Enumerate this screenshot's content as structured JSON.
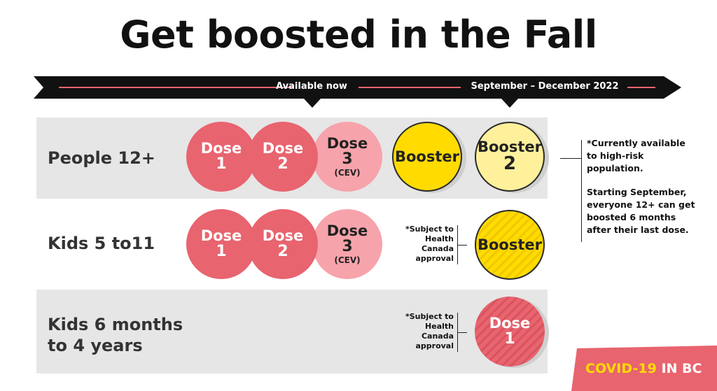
{
  "title": "Get boosted in the Fall",
  "timeline": {
    "label_available_now": "Available now",
    "label_sep_dec": "September – December 2022",
    "colors": {
      "bar": "#111111",
      "accent_line": "#e8646f"
    }
  },
  "rows": [
    {
      "label": "People 12+",
      "items": [
        {
          "word": "Dose",
          "num": "1"
        },
        {
          "word": "Dose",
          "num": "2"
        },
        {
          "word": "Dose",
          "num": "3",
          "sub": "(CEV)"
        },
        {
          "word": "Booster"
        },
        {
          "word": "Booster",
          "num": "2"
        }
      ]
    },
    {
      "label": "Kids 5 to11",
      "items": [
        {
          "word": "Dose",
          "num": "1"
        },
        {
          "word": "Dose",
          "num": "2"
        },
        {
          "word": "Dose",
          "num": "3",
          "sub": "(CEV)"
        },
        {
          "word": "Booster"
        }
      ],
      "note": [
        "*Subject to",
        "Health",
        "Canada",
        "approval"
      ]
    },
    {
      "label": [
        "Kids 6 months",
        "to 4 years"
      ],
      "items": [
        {
          "word": "Dose",
          "num": "1"
        }
      ],
      "note": [
        "*Subject to",
        "Health",
        "Canada",
        "approval"
      ]
    }
  ],
  "side_note": {
    "line1": [
      "*Currently available",
      "to high-risk",
      "population."
    ],
    "line2": [
      "Starting September,",
      "everyone 12+ can get",
      "boosted 6 months",
      "after their last dose."
    ]
  },
  "badge": {
    "part1": "COVID-19",
    "part2": "IN BC",
    "colors": {
      "bg": "#e8646f",
      "part1": "#ffdb00",
      "part2": "#ffffff"
    }
  },
  "colors": {
    "dose": "#e8646f",
    "dose_cev": "#f7a3ab",
    "booster": "#ffdb00",
    "booster2": "#fff09c",
    "band": "#e6e6e6"
  }
}
